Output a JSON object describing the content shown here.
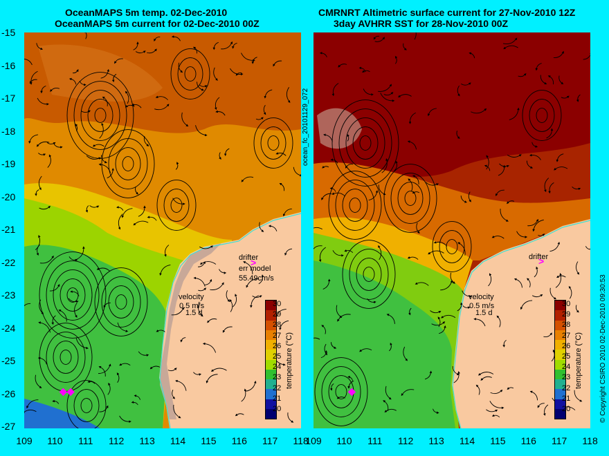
{
  "titles": {
    "left_line1": "OceanMAPS 5m temp. 02-Dec-2010",
    "left_line2": "OceanMAPS 5m current for 02-Dec-2010 00Z",
    "right_line1": "CMRNRT Altimetric surface current for 27-Nov-2010 12Z",
    "right_line2": "3day AVHRR SST for 28-Nov-2010 00Z"
  },
  "side_labels": {
    "file_id": "ocean_fc_20101129_072",
    "copyright": "© Copyright CSIRO 2010  02-Dec-2010 09:30:53"
  },
  "axes": {
    "y_ticks": [
      "-15",
      "-16",
      "-17",
      "-18",
      "-19",
      "-20",
      "-21",
      "-22",
      "-23",
      "-24",
      "-25",
      "-26",
      "-27"
    ],
    "x_ticks": [
      "109",
      "110",
      "111",
      "112",
      "113",
      "114",
      "115",
      "116",
      "117",
      "118"
    ]
  },
  "legend": {
    "title": "temperature (°C)",
    "ticks": [
      "30",
      "29",
      "28",
      "27",
      "26",
      "25",
      "24",
      "23",
      "22",
      "21",
      "20"
    ],
    "colors": [
      "#8b0000",
      "#b22000",
      "#d45000",
      "#e88000",
      "#f0b000",
      "#e0d000",
      "#a0dc00",
      "#30c030",
      "#20b090",
      "#2070d0",
      "#1010a0",
      "#000070"
    ]
  },
  "left_panel": {
    "drifter_label": "drifter",
    "err_model_label": "err model",
    "err_value": "55.49cm/s",
    "velocity_label": "velocity",
    "speed_label": "0.5 m/s",
    "duration_label": "1.5 d"
  },
  "right_panel": {
    "drifter_label": "drifter",
    "velocity_label": "velocity",
    "speed_label": "0.5 m/s",
    "duration_label": "1.5 d"
  },
  "colors": {
    "background": "#00f0ff",
    "land": "#f9c9a0",
    "coast": "#40e0d0",
    "drifter": "#ff00ff"
  }
}
